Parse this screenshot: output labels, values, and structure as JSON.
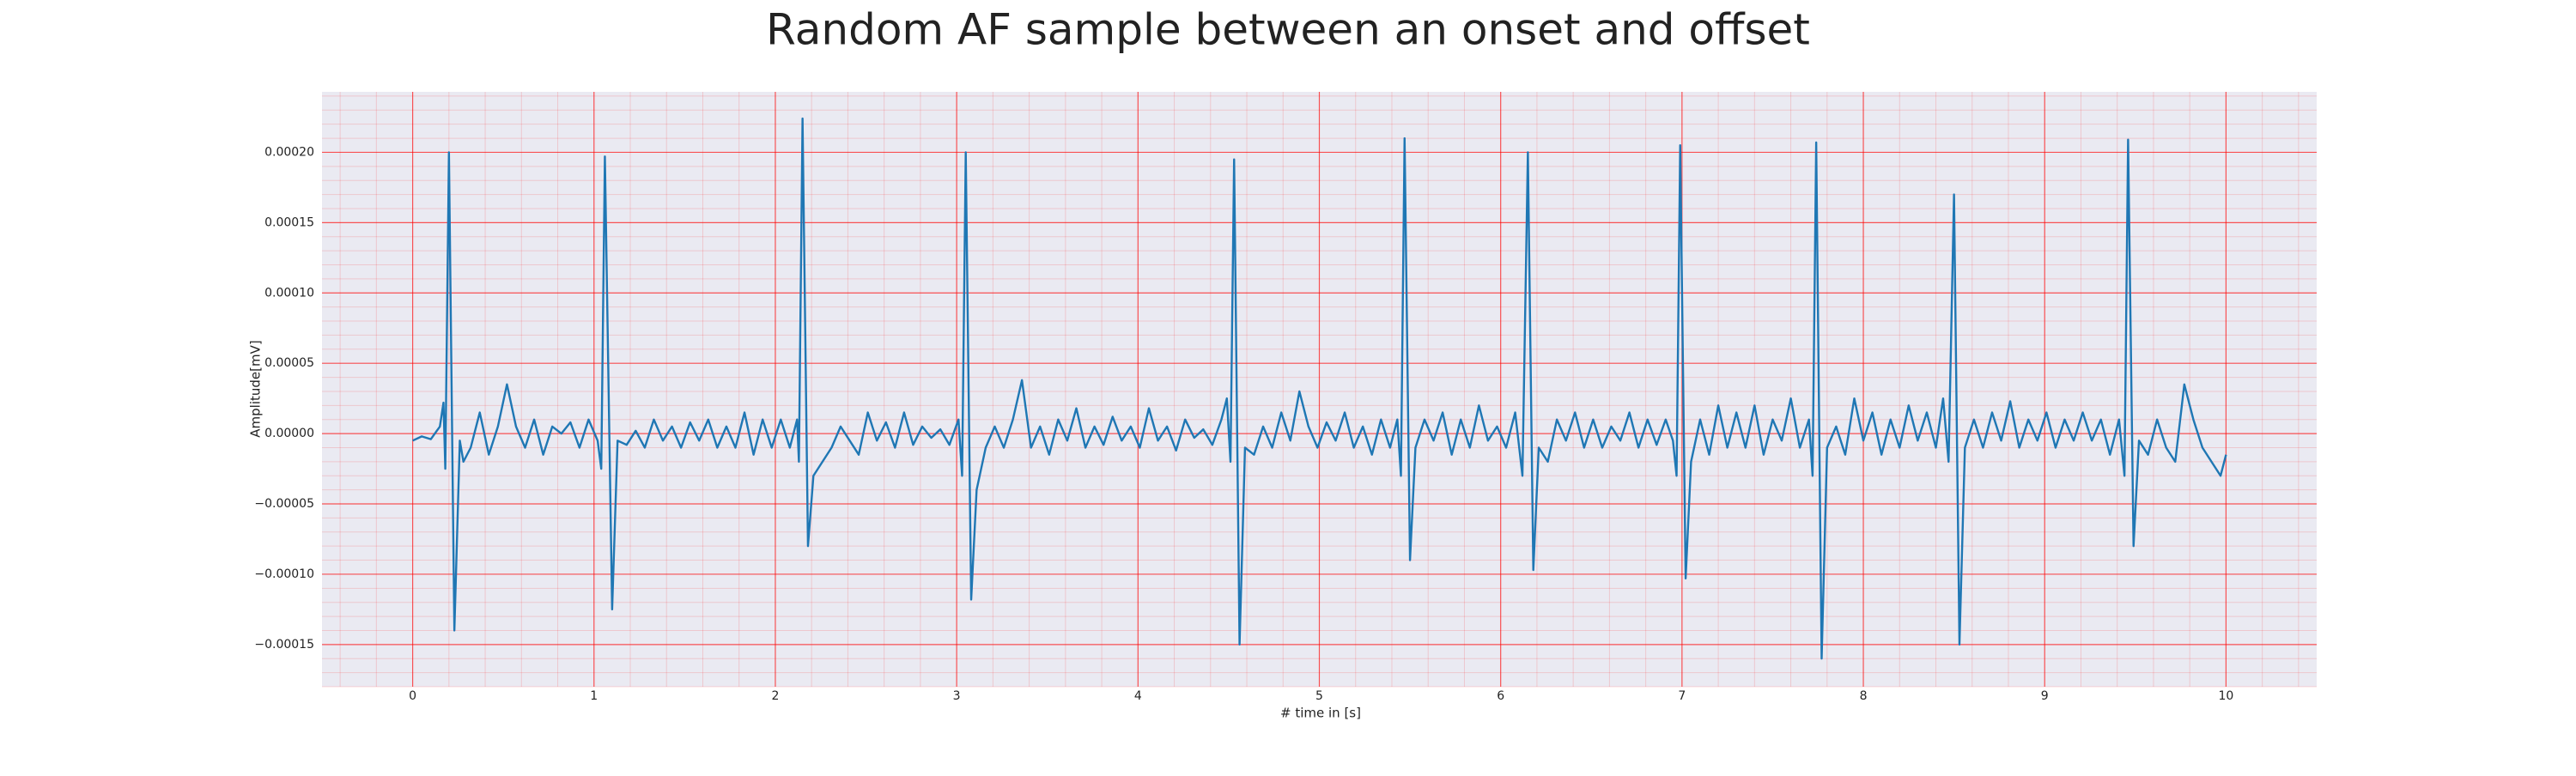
{
  "chart_data": {
    "type": "line",
    "title": "Random AF sample between an onset and offset",
    "x_label": "# time in [s]",
    "y_label": "Amplitude[mV]",
    "xlim": [
      -0.5,
      10.5
    ],
    "ylim": [
      -0.00018,
      0.000243
    ],
    "xticks": [
      0,
      1,
      2,
      3,
      4,
      5,
      6,
      7,
      8,
      9,
      10
    ],
    "yticks": [
      {
        "value": -0.00015,
        "label": "−0.00015"
      },
      {
        "value": -0.0001,
        "label": "−0.00010"
      },
      {
        "value": -5e-05,
        "label": "−0.00005"
      },
      {
        "value": 0,
        "label": "0.00000"
      },
      {
        "value": 5e-05,
        "label": "0.00005"
      },
      {
        "value": 0.0001,
        "label": "0.00010"
      },
      {
        "value": 0.00015,
        "label": "0.00015"
      },
      {
        "value": 0.0002,
        "label": "0.00020"
      }
    ],
    "grid": true,
    "minor_grid": true,
    "grid_color": "#ff0000",
    "background": "#eaeaf2",
    "color": "#1f77b4",
    "x": [
      0,
      0.05,
      0.1,
      0.15,
      0.17,
      0.18,
      0.2,
      0.23,
      0.26,
      0.28,
      0.32,
      0.37,
      0.42,
      0.47,
      0.52,
      0.57,
      0.62,
      0.67,
      0.72,
      0.77,
      0.82,
      0.87,
      0.92,
      0.97,
      1.02,
      1.04,
      1.06,
      1.1,
      1.13,
      1.18,
      1.23,
      1.28,
      1.33,
      1.38,
      1.43,
      1.48,
      1.53,
      1.58,
      1.63,
      1.68,
      1.73,
      1.78,
      1.83,
      1.88,
      1.93,
      1.98,
      2.03,
      2.08,
      2.12,
      2.13,
      2.15,
      2.18,
      2.21,
      2.26,
      2.31,
      2.36,
      2.41,
      2.46,
      2.51,
      2.56,
      2.61,
      2.66,
      2.71,
      2.76,
      2.81,
      2.86,
      2.91,
      2.96,
      3.01,
      3.03,
      3.05,
      3.08,
      3.11,
      3.16,
      3.21,
      3.26,
      3.31,
      3.36,
      3.41,
      3.46,
      3.51,
      3.56,
      3.61,
      3.66,
      3.71,
      3.76,
      3.81,
      3.86,
      3.91,
      3.96,
      4.01,
      4.06,
      4.11,
      4.16,
      4.21,
      4.26,
      4.31,
      4.36,
      4.41,
      4.46,
      4.49,
      4.51,
      4.53,
      4.56,
      4.59,
      4.64,
      4.69,
      4.74,
      4.79,
      4.84,
      4.89,
      4.94,
      4.99,
      5.04,
      5.09,
      5.14,
      5.19,
      5.24,
      5.29,
      5.34,
      5.39,
      5.43,
      5.45,
      5.47,
      5.5,
      5.53,
      5.58,
      5.63,
      5.68,
      5.73,
      5.78,
      5.83,
      5.88,
      5.93,
      5.98,
      6.03,
      6.08,
      6.12,
      6.15,
      6.18,
      6.21,
      6.26,
      6.31,
      6.36,
      6.41,
      6.46,
      6.51,
      6.56,
      6.61,
      6.66,
      6.71,
      6.76,
      6.81,
      6.86,
      6.91,
      6.95,
      6.97,
      6.99,
      7.02,
      7.05,
      7.1,
      7.15,
      7.2,
      7.25,
      7.3,
      7.35,
      7.4,
      7.45,
      7.5,
      7.55,
      7.6,
      7.65,
      7.7,
      7.72,
      7.74,
      7.77,
      7.8,
      7.85,
      7.9,
      7.95,
      8,
      8.05,
      8.1,
      8.15,
      8.2,
      8.25,
      8.3,
      8.35,
      8.4,
      8.44,
      8.47,
      8.5,
      8.53,
      8.56,
      8.61,
      8.66,
      8.71,
      8.76,
      8.81,
      8.86,
      8.91,
      8.96,
      9.01,
      9.06,
      9.11,
      9.16,
      9.21,
      9.26,
      9.31,
      9.36,
      9.41,
      9.44,
      9.46,
      9.49,
      9.52,
      9.57,
      9.62,
      9.67,
      9.72,
      9.77,
      9.82,
      9.87,
      9.92,
      9.97,
      10
    ],
    "values": [
      -5e-06,
      -2e-06,
      -4e-06,
      5e-06,
      2.2e-05,
      -2.5e-05,
      0.0002,
      -0.00014,
      -5e-06,
      -2e-05,
      -1e-05,
      1.5e-05,
      -1.5e-05,
      5e-06,
      3.5e-05,
      5e-06,
      -1e-05,
      1e-05,
      -1.5e-05,
      5e-06,
      0,
      8e-06,
      -1e-05,
      1e-05,
      -5e-06,
      -2.5e-05,
      0.000197,
      -0.000125,
      -5e-06,
      -8e-06,
      2e-06,
      -1e-05,
      1e-05,
      -5e-06,
      5e-06,
      -1e-05,
      8e-06,
      -5e-06,
      1e-05,
      -1e-05,
      5e-06,
      -1e-05,
      1.5e-05,
      -1.5e-05,
      1e-05,
      -1e-05,
      1e-05,
      -1e-05,
      1e-05,
      -2e-05,
      0.000224,
      -8e-05,
      -3e-05,
      -2e-05,
      -1e-05,
      5e-06,
      -5e-06,
      -1.5e-05,
      1.5e-05,
      -5e-06,
      8e-06,
      -1e-05,
      1.5e-05,
      -8e-06,
      5e-06,
      -3e-06,
      3e-06,
      -8e-06,
      1e-05,
      -3e-05,
      0.0002,
      -0.000118,
      -4e-05,
      -1e-05,
      5e-06,
      -1e-05,
      1e-05,
      3.8e-05,
      -1e-05,
      5e-06,
      -1.5e-05,
      1e-05,
      -5e-06,
      1.8e-05,
      -1e-05,
      5e-06,
      -8e-06,
      1.2e-05,
      -5e-06,
      5e-06,
      -1e-05,
      1.8e-05,
      -5e-06,
      5e-06,
      -1.2e-05,
      1e-05,
      -3e-06,
      3e-06,
      -8e-06,
      1e-05,
      2.5e-05,
      -2e-05,
      0.000195,
      -0.00015,
      -1e-05,
      -1.5e-05,
      5e-06,
      -1e-05,
      1.5e-05,
      -5e-06,
      3e-05,
      5e-06,
      -1e-05,
      8e-06,
      -5e-06,
      1.5e-05,
      -1e-05,
      5e-06,
      -1.5e-05,
      1e-05,
      -1e-05,
      1e-05,
      -3e-05,
      0.00021,
      -9e-05,
      -1e-05,
      1e-05,
      -5e-06,
      1.5e-05,
      -1.5e-05,
      1e-05,
      -1e-05,
      2e-05,
      -5e-06,
      5e-06,
      -1e-05,
      1.5e-05,
      -3e-05,
      0.0002,
      -9.7e-05,
      -1e-05,
      -2e-05,
      1e-05,
      -5e-06,
      1.5e-05,
      -1e-05,
      1e-05,
      -1e-05,
      5e-06,
      -5e-06,
      1.5e-05,
      -1e-05,
      1e-05,
      -8e-06,
      1e-05,
      -5e-06,
      -3e-05,
      0.000205,
      -0.000103,
      -2e-05,
      1e-05,
      -1.5e-05,
      2e-05,
      -1e-05,
      1.5e-05,
      -1e-05,
      2e-05,
      -1.5e-05,
      1e-05,
      -5e-06,
      2.5e-05,
      -1e-05,
      1e-05,
      -3e-05,
      0.000207,
      -0.00016,
      -1e-05,
      5e-06,
      -1.5e-05,
      2.5e-05,
      -5e-06,
      1.5e-05,
      -1.5e-05,
      1e-05,
      -1e-05,
      2e-05,
      -5e-06,
      1.5e-05,
      -1e-05,
      2.5e-05,
      -2e-05,
      0.00017,
      -0.00015,
      -1e-05,
      1e-05,
      -1e-05,
      1.5e-05,
      -5e-06,
      2.3e-05,
      -1e-05,
      1e-05,
      -5e-06,
      1.5e-05,
      -1e-05,
      1e-05,
      -5e-06,
      1.5e-05,
      -5e-06,
      1e-05,
      -1.5e-05,
      1e-05,
      -3e-05,
      0.000209,
      -8e-05,
      -5e-06,
      -1.5e-05,
      1e-05,
      -1e-05,
      -2e-05,
      3.5e-05,
      1e-05,
      -1e-05,
      -2e-05,
      -3e-05,
      -1.5e-05
    ]
  }
}
